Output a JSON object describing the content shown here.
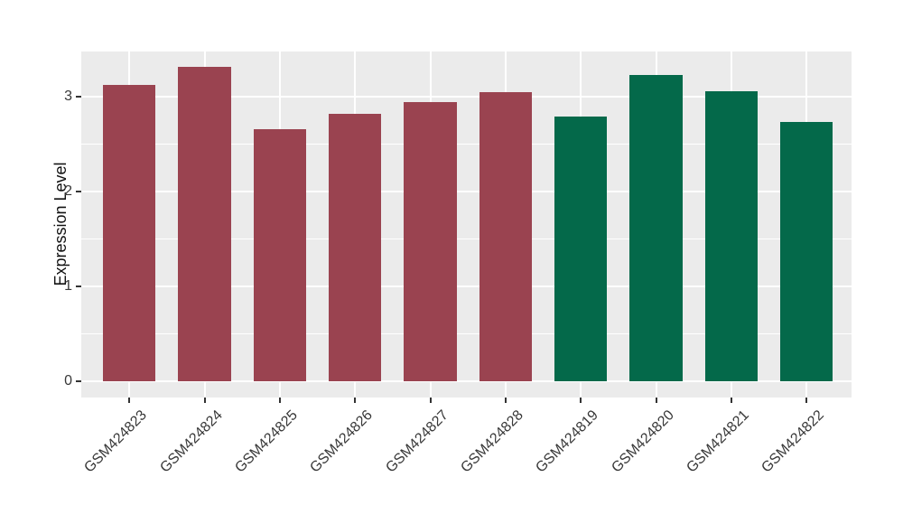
{
  "chart_data": {
    "type": "bar",
    "title": "",
    "ylabel": "Expression Level",
    "xlabel": "",
    "categories": [
      "GSM424823",
      "GSM424824",
      "GSM424825",
      "GSM424826",
      "GSM424827",
      "GSM424828",
      "GSM424819",
      "GSM424820",
      "GSM424821",
      "GSM424822"
    ],
    "values": [
      3.13,
      3.32,
      2.66,
      2.82,
      2.95,
      3.05,
      2.79,
      3.23,
      3.06,
      2.74
    ],
    "bar_groups": [
      "maroon",
      "maroon",
      "maroon",
      "maroon",
      "maroon",
      "maroon",
      "green",
      "green",
      "green",
      "green"
    ],
    "group_colors": {
      "maroon": "#9A4350",
      "green": "#04694A"
    },
    "y_ticks": [
      0,
      1,
      2,
      3
    ],
    "y_minor_ticks": [
      0.5,
      1.5,
      2.5
    ],
    "ylim": [
      -0.17,
      3.48
    ],
    "grid": "on",
    "legend_position": "none",
    "panel_bg": "#EBEBEB",
    "grid_color": "#FFFFFF",
    "tick_color": "#333333",
    "axis_text_color": "#383838"
  }
}
